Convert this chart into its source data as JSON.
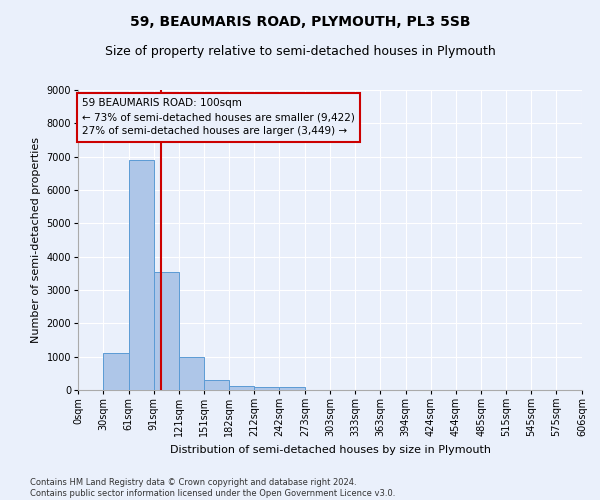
{
  "title": "59, BEAUMARIS ROAD, PLYMOUTH, PL3 5SB",
  "subtitle": "Size of property relative to semi-detached houses in Plymouth",
  "xlabel": "Distribution of semi-detached houses by size in Plymouth",
  "ylabel": "Number of semi-detached properties",
  "bar_values": [
    0,
    1100,
    6900,
    3550,
    1000,
    300,
    130,
    80,
    80,
    0,
    0,
    0,
    0,
    0,
    0,
    0,
    0,
    0,
    0,
    0
  ],
  "bin_edges": [
    0,
    30,
    61,
    91,
    121,
    151,
    182,
    212,
    242,
    273,
    303,
    333,
    363,
    394,
    424,
    454,
    485,
    515,
    545,
    575,
    606
  ],
  "bar_color": "#aec6e8",
  "bar_edge_color": "#5b9bd5",
  "property_line_x": 100,
  "property_line_color": "#cc0000",
  "annotation_text": "59 BEAUMARIS ROAD: 100sqm\n← 73% of semi-detached houses are smaller (9,422)\n27% of semi-detached houses are larger (3,449) →",
  "annotation_box_color": "#cc0000",
  "ylim": [
    0,
    9000
  ],
  "yticks": [
    0,
    1000,
    2000,
    3000,
    4000,
    5000,
    6000,
    7000,
    8000,
    9000
  ],
  "xtick_labels": [
    "0sqm",
    "30sqm",
    "61sqm",
    "91sqm",
    "121sqm",
    "151sqm",
    "182sqm",
    "212sqm",
    "242sqm",
    "273sqm",
    "303sqm",
    "333sqm",
    "363sqm",
    "394sqm",
    "424sqm",
    "454sqm",
    "485sqm",
    "515sqm",
    "545sqm",
    "575sqm",
    "606sqm"
  ],
  "footnote": "Contains HM Land Registry data © Crown copyright and database right 2024.\nContains public sector information licensed under the Open Government Licence v3.0.",
  "background_color": "#eaf0fb",
  "grid_color": "#ffffff",
  "title_fontsize": 10,
  "subtitle_fontsize": 9,
  "axis_label_fontsize": 8,
  "tick_fontsize": 7,
  "footnote_fontsize": 6,
  "annotation_fontsize": 7.5
}
